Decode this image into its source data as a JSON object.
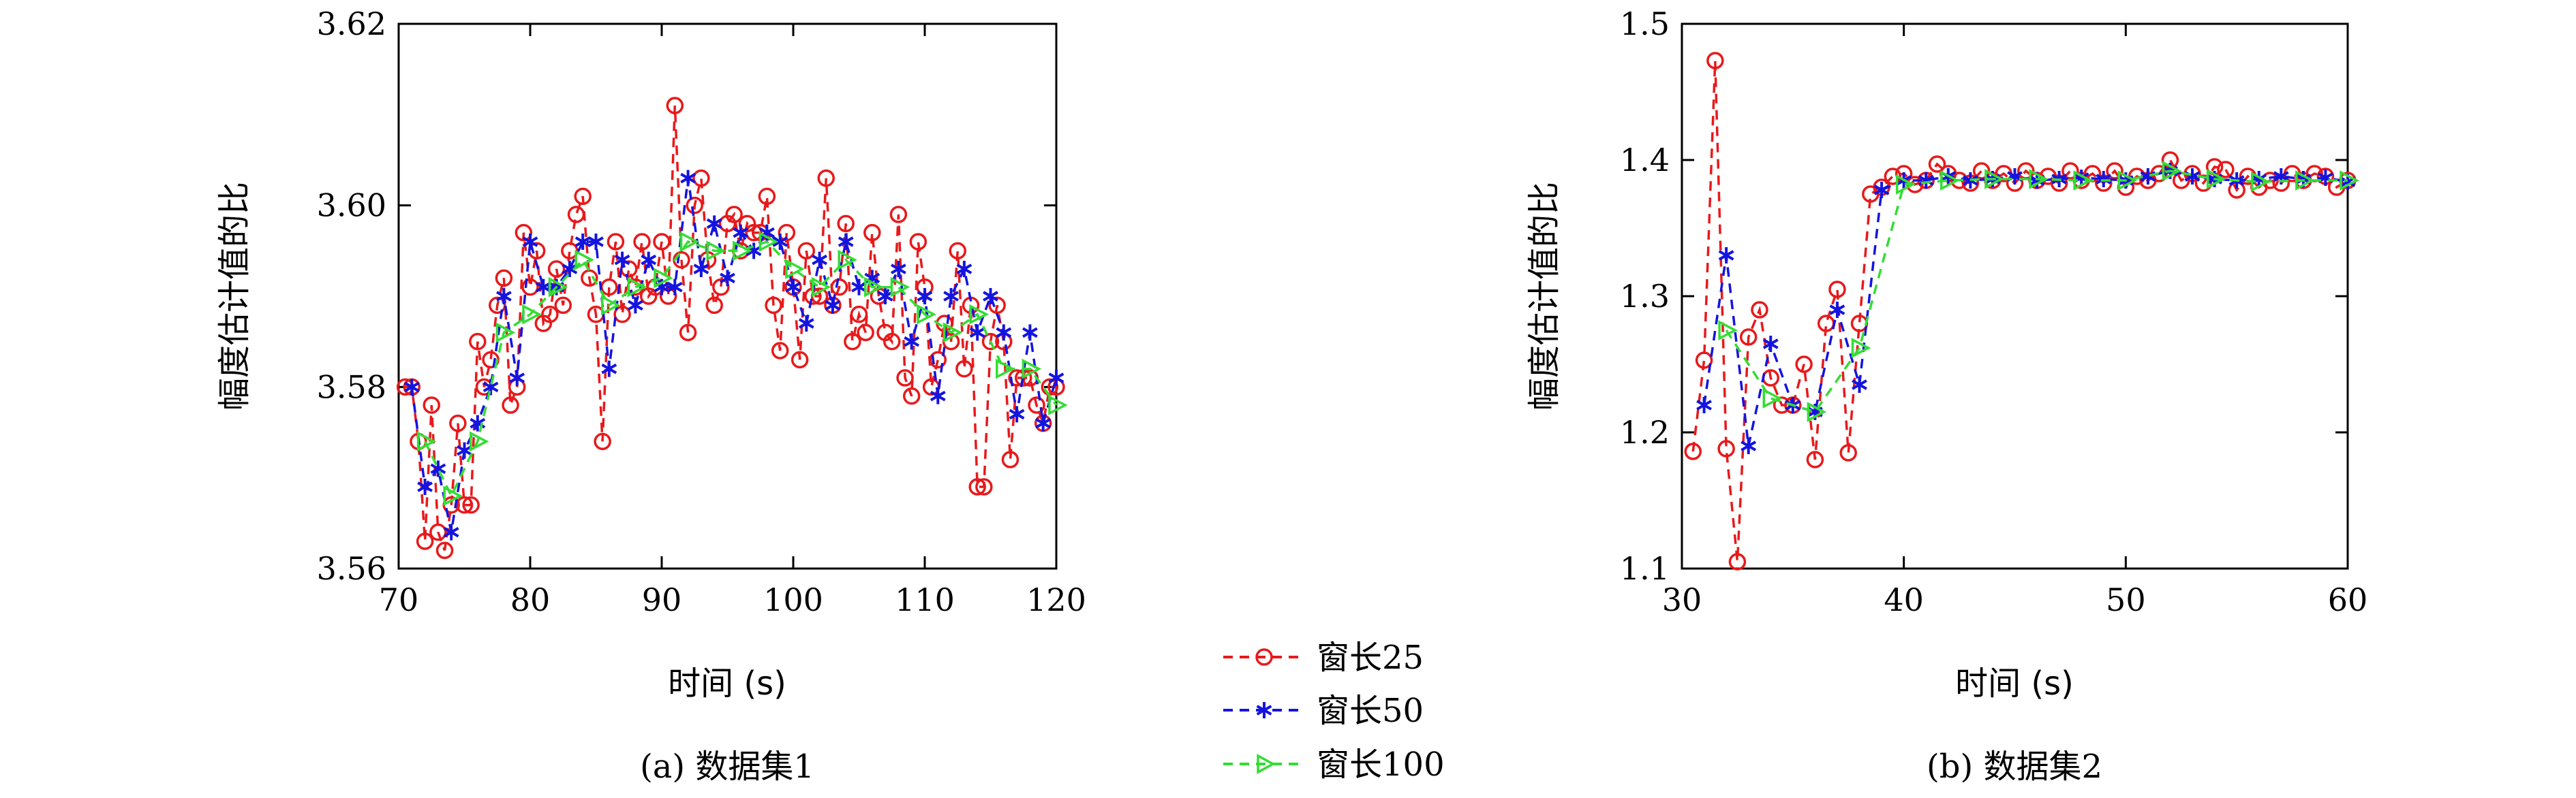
{
  "legend": {
    "items": [
      {
        "label": "窗长25",
        "color": "#e8191b",
        "marker": "circle"
      },
      {
        "label": "窗长50",
        "color": "#1414e0",
        "marker": "asterisk"
      },
      {
        "label": "窗长100",
        "color": "#33dd33",
        "marker": "triangle-right"
      }
    ]
  },
  "chart_data": [
    {
      "type": "line",
      "caption": "(a) 数据集1",
      "xlabel": "时间 (s)",
      "ylabel": "幅度估计值的比",
      "xlim": [
        70,
        120
      ],
      "ylim": [
        3.56,
        3.62
      ],
      "xticks": [
        "70",
        "80",
        "90",
        "100",
        "110",
        "120"
      ],
      "yticks": [
        "3.56",
        "3.58",
        "3.60",
        "3.62"
      ],
      "grid": false,
      "series": [
        {
          "name": "窗长25",
          "color": "#e8191b",
          "marker": "circle",
          "x": [
            70.5,
            71,
            71.5,
            72,
            72.5,
            73,
            73.5,
            74,
            74.5,
            75,
            75.5,
            76,
            76.5,
            77,
            77.5,
            78,
            78.5,
            79,
            79.5,
            80,
            80.5,
            81,
            81.5,
            82,
            82.5,
            83,
            83.5,
            84,
            84.5,
            85,
            85.5,
            86,
            86.5,
            87,
            87.5,
            88,
            88.5,
            89,
            89.5,
            90,
            90.5,
            91,
            91.5,
            92,
            92.5,
            93,
            93.5,
            94,
            94.5,
            95,
            95.5,
            96,
            96.5,
            97,
            97.5,
            98,
            98.5,
            99,
            99.5,
            100,
            100.5,
            101,
            101.5,
            102,
            102.5,
            103,
            103.5,
            104,
            104.5,
            105,
            105.5,
            106,
            106.5,
            107,
            107.5,
            108,
            108.5,
            109,
            109.5,
            110,
            110.5,
            111,
            111.5,
            112,
            112.5,
            113,
            113.5,
            114,
            114.5,
            115,
            115.5,
            116,
            116.5,
            117,
            117.5,
            118,
            118.5,
            119,
            119.5,
            120
          ],
          "y": [
            3.58,
            3.58,
            3.574,
            3.563,
            3.578,
            3.564,
            3.562,
            3.567,
            3.576,
            3.567,
            3.567,
            3.585,
            3.58,
            3.583,
            3.589,
            3.592,
            3.578,
            3.58,
            3.597,
            3.591,
            3.595,
            3.587,
            3.588,
            3.593,
            3.589,
            3.595,
            3.599,
            3.601,
            3.592,
            3.588,
            3.574,
            3.591,
            3.596,
            3.588,
            3.593,
            3.591,
            3.596,
            3.59,
            3.591,
            3.596,
            3.59,
            3.611,
            3.594,
            3.586,
            3.6,
            3.603,
            3.594,
            3.589,
            3.591,
            3.598,
            3.599,
            3.595,
            3.598,
            3.597,
            3.597,
            3.601,
            3.589,
            3.584,
            3.597,
            3.591,
            3.583,
            3.595,
            3.59,
            3.59,
            3.603,
            3.589,
            3.591,
            3.598,
            3.585,
            3.588,
            3.586,
            3.597,
            3.59,
            3.586,
            3.585,
            3.599,
            3.581,
            3.579,
            3.596,
            3.591,
            3.58,
            3.583,
            3.587,
            3.585,
            3.595,
            3.582,
            3.589,
            3.569,
            3.569,
            3.585,
            3.589,
            3.585,
            3.572,
            3.581,
            3.581,
            3.581,
            3.578,
            3.576,
            3.58,
            3.58
          ]
        },
        {
          "name": "窗长50",
          "color": "#1414e0",
          "marker": "asterisk",
          "x": [
            71,
            72,
            73,
            74,
            75,
            76,
            77,
            78,
            79,
            80,
            81,
            82,
            83,
            84,
            85,
            86,
            87,
            88,
            89,
            90,
            91,
            92,
            93,
            94,
            95,
            96,
            97,
            98,
            99,
            100,
            101,
            102,
            103,
            104,
            105,
            106,
            107,
            108,
            109,
            110,
            111,
            112,
            113,
            114,
            115,
            116,
            117,
            118,
            119,
            120
          ],
          "y": [
            3.58,
            3.569,
            3.571,
            3.564,
            3.573,
            3.576,
            3.58,
            3.59,
            3.581,
            3.596,
            3.591,
            3.591,
            3.593,
            3.596,
            3.596,
            3.582,
            3.594,
            3.589,
            3.594,
            3.591,
            3.591,
            3.603,
            3.593,
            3.598,
            3.592,
            3.597,
            3.595,
            3.597,
            3.596,
            3.591,
            3.587,
            3.594,
            3.589,
            3.596,
            3.591,
            3.592,
            3.59,
            3.593,
            3.585,
            3.59,
            3.579,
            3.59,
            3.593,
            3.586,
            3.59,
            3.586,
            3.577,
            3.586,
            3.576,
            3.581
          ]
        },
        {
          "name": "窗长100",
          "color": "#33dd33",
          "marker": "triangle-right",
          "x": [
            72,
            74,
            76,
            78,
            80,
            82,
            84,
            86,
            88,
            90,
            92,
            94,
            96,
            98,
            100,
            102,
            104,
            106,
            108,
            110,
            112,
            114,
            116,
            118,
            120
          ],
          "y": [
            3.574,
            3.568,
            3.574,
            3.586,
            3.588,
            3.591,
            3.594,
            3.589,
            3.591,
            3.592,
            3.596,
            3.595,
            3.595,
            3.596,
            3.593,
            3.591,
            3.594,
            3.591,
            3.591,
            3.588,
            3.586,
            3.588,
            3.582,
            3.582,
            3.578
          ]
        }
      ]
    },
    {
      "type": "line",
      "caption": "(b) 数据集2",
      "xlabel": "时间 (s)",
      "ylabel": "幅度估计值的比",
      "xlim": [
        30,
        60
      ],
      "ylim": [
        1.1,
        1.5
      ],
      "xticks": [
        "30",
        "40",
        "50",
        "60"
      ],
      "yticks": [
        "1.1",
        "1.2",
        "1.3",
        "1.4",
        "1.5"
      ],
      "grid": false,
      "series": [
        {
          "name": "窗长25",
          "color": "#e8191b",
          "marker": "circle",
          "x": [
            30.5,
            31,
            31.5,
            32,
            32.5,
            33,
            33.5,
            34,
            34.5,
            35,
            35.5,
            36,
            36.5,
            37,
            37.5,
            38,
            38.5,
            39,
            39.5,
            40,
            40.5,
            41,
            41.5,
            42,
            42.5,
            43,
            43.5,
            44,
            44.5,
            45,
            45.5,
            46,
            46.5,
            47,
            47.5,
            48,
            48.5,
            49,
            49.5,
            50,
            50.5,
            51,
            51.5,
            52,
            52.5,
            53,
            53.5,
            54,
            54.5,
            55,
            55.5,
            56,
            56.5,
            57,
            57.5,
            58,
            58.5,
            59,
            59.5,
            60
          ],
          "y": [
            1.186,
            1.253,
            1.473,
            1.188,
            1.105,
            1.27,
            1.29,
            1.24,
            1.22,
            1.22,
            1.25,
            1.18,
            1.28,
            1.305,
            1.185,
            1.28,
            1.375,
            1.38,
            1.388,
            1.39,
            1.382,
            1.385,
            1.397,
            1.39,
            1.385,
            1.383,
            1.392,
            1.385,
            1.39,
            1.383,
            1.392,
            1.385,
            1.388,
            1.383,
            1.392,
            1.385,
            1.39,
            1.383,
            1.392,
            1.38,
            1.388,
            1.385,
            1.39,
            1.4,
            1.385,
            1.39,
            1.383,
            1.395,
            1.393,
            1.378,
            1.388,
            1.38,
            1.385,
            1.383,
            1.39,
            1.385,
            1.39,
            1.388,
            1.38,
            1.385
          ]
        },
        {
          "name": "窗长50",
          "color": "#1414e0",
          "marker": "asterisk",
          "x": [
            31,
            32,
            33,
            34,
            35,
            36,
            37,
            38,
            39,
            40,
            41,
            42,
            43,
            44,
            45,
            46,
            47,
            48,
            49,
            50,
            51,
            52,
            53,
            54,
            55,
            56,
            57,
            58,
            59,
            60
          ],
          "y": [
            1.22,
            1.33,
            1.19,
            1.265,
            1.22,
            1.215,
            1.29,
            1.235,
            1.378,
            1.385,
            1.385,
            1.388,
            1.385,
            1.386,
            1.388,
            1.385,
            1.386,
            1.387,
            1.386,
            1.385,
            1.388,
            1.392,
            1.388,
            1.386,
            1.385,
            1.386,
            1.388,
            1.386,
            1.387,
            1.384
          ]
        },
        {
          "name": "窗长100",
          "color": "#33dd33",
          "marker": "triangle-right",
          "x": [
            32,
            34,
            36,
            38,
            40,
            42,
            44,
            46,
            48,
            50,
            52,
            54,
            56,
            58,
            60
          ],
          "y": [
            1.275,
            1.225,
            1.215,
            1.262,
            1.382,
            1.385,
            1.386,
            1.386,
            1.385,
            1.385,
            1.392,
            1.386,
            1.384,
            1.385,
            1.385
          ]
        }
      ]
    }
  ]
}
